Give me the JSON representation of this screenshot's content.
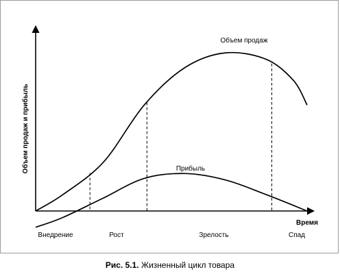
{
  "chart_data": {
    "type": "line",
    "xlabel": "Время",
    "ylabel": "Объем продаж и прибыль",
    "stages": [
      "Внедрение",
      "Рост",
      "Зрелость",
      "Спад"
    ],
    "series": [
      {
        "name": "Объем продаж",
        "x": [
          0,
          10,
          25,
          40,
          55,
          70,
          85,
          95,
          100
        ],
        "y": [
          0,
          10,
          30,
          65,
          88,
          97,
          93,
          80,
          65
        ]
      },
      {
        "name": "Прибыль",
        "x": [
          0,
          10,
          25,
          40,
          55,
          70,
          85,
          100
        ],
        "y": [
          -10,
          -4,
          8,
          20,
          23,
          19,
          10,
          0
        ]
      }
    ],
    "stage_boundaries_x": [
      20,
      41,
      87
    ],
    "xlim": [
      0,
      100
    ],
    "ylim": [
      -12,
      105
    ],
    "grid": false
  },
  "caption": {
    "label": "Рис. 5.1.",
    "text": "Жизненный цикл товара"
  },
  "colors": {
    "line": "#000000",
    "frame": "#9a9a9a"
  }
}
